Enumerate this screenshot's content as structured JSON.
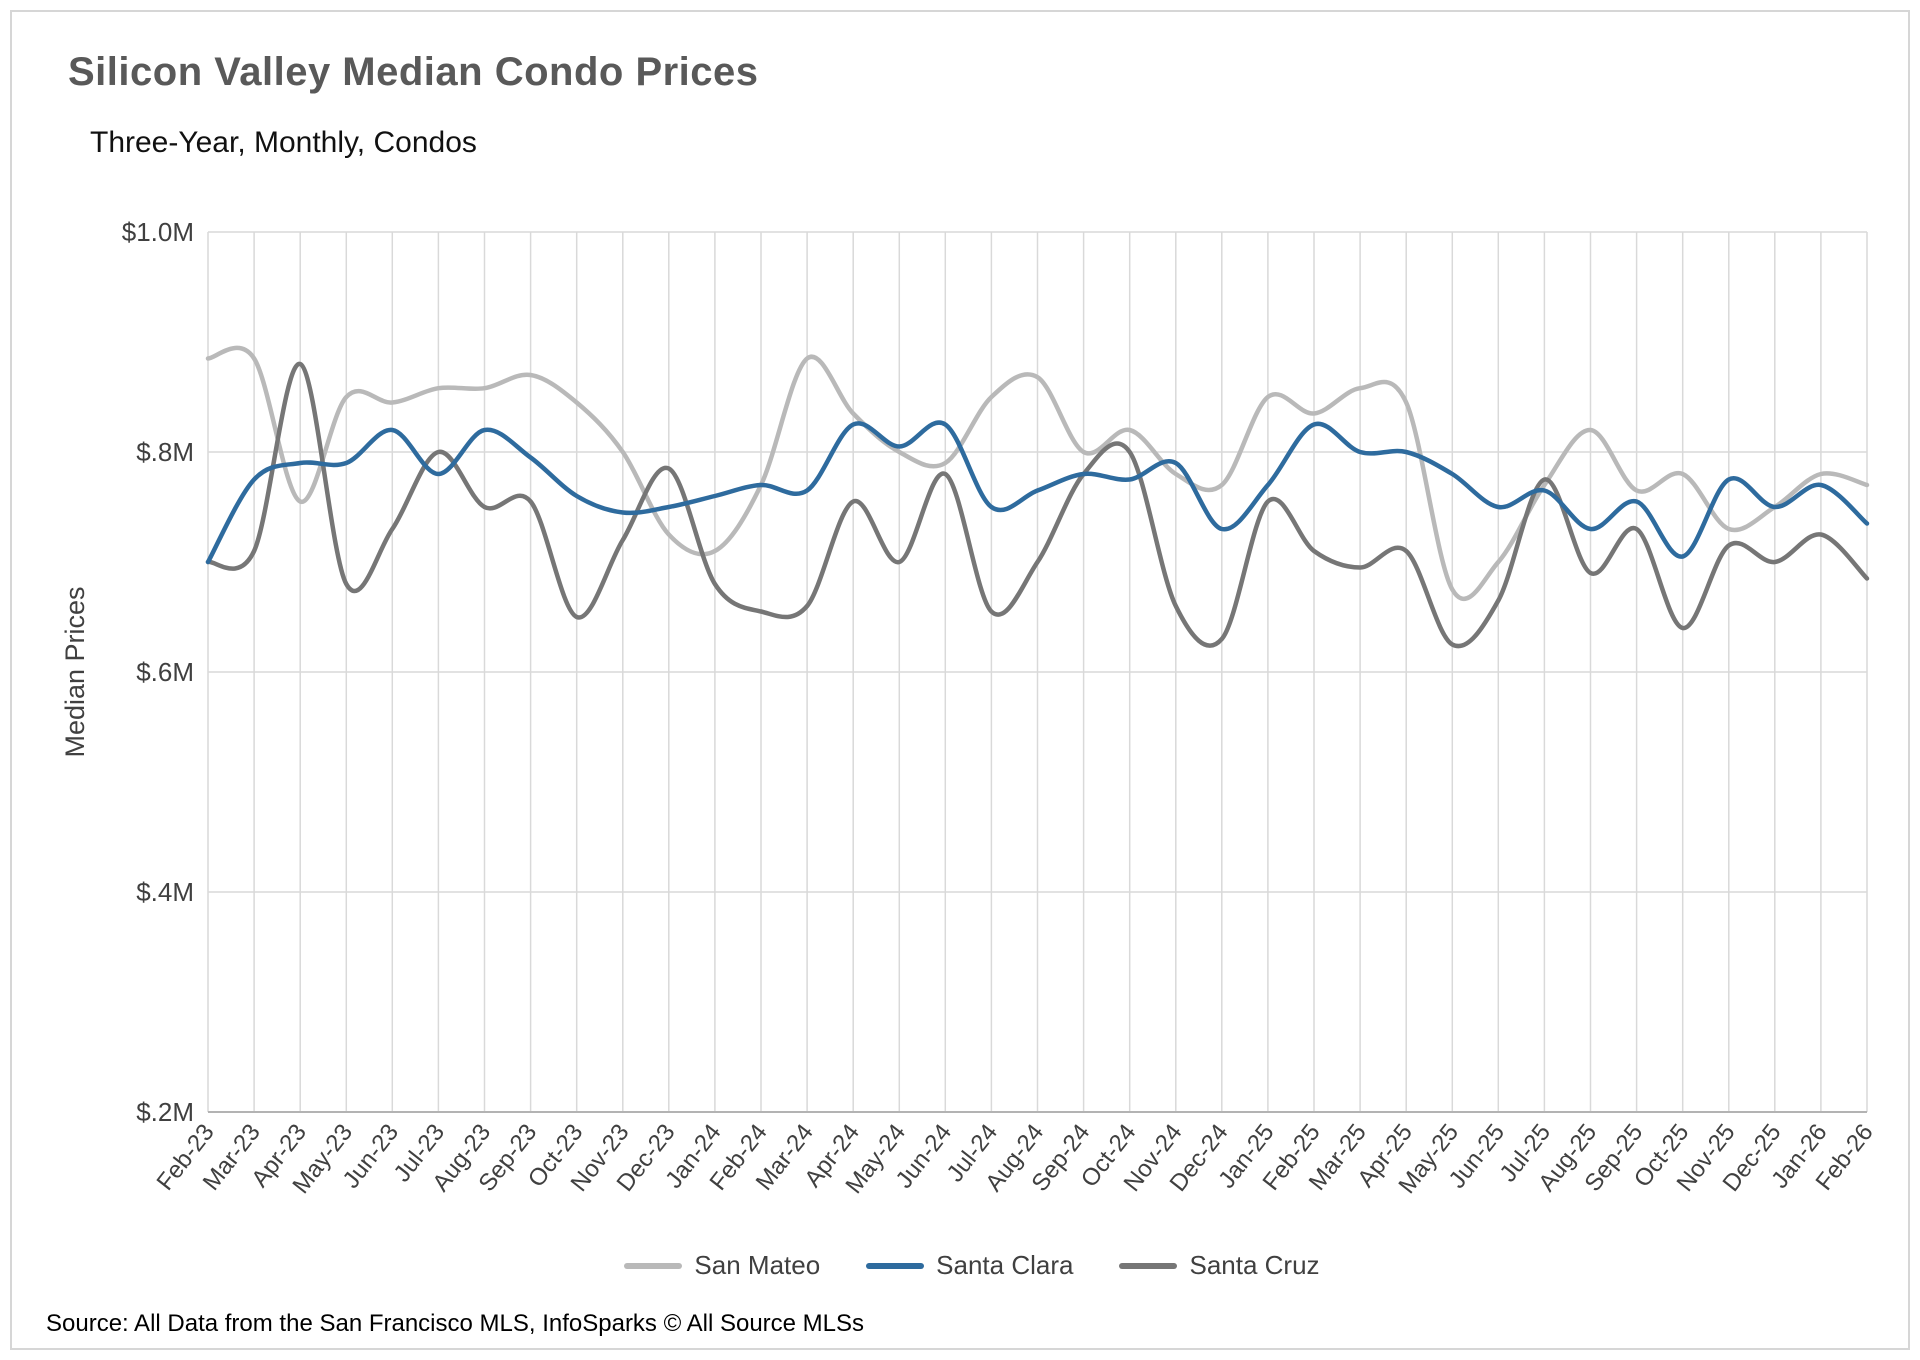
{
  "header": {
    "title": "Silicon Valley Median Condo Prices",
    "subtitle": "Three-Year, Monthly, Condos"
  },
  "footer": {
    "source": "Source: All Data from the San Francisco MLS, InfoSparks © All Source MLSs"
  },
  "colors": {
    "grid": "#d9d9d9",
    "axis_text": "#404040",
    "title_text": "#595959",
    "frame_border": "#d6d6d6"
  },
  "chart_data": {
    "type": "line",
    "title": "Silicon Valley Median Condo Prices",
    "subtitle": "Three-Year, Monthly, Condos",
    "xlabel": "",
    "ylabel": "Median Prices",
    "unit": "$M",
    "ylim": [
      0.2,
      1.0
    ],
    "grid": true,
    "legend_position": "bottom",
    "categories": [
      "Feb-23",
      "Mar-23",
      "Apr-23",
      "May-23",
      "Jun-23",
      "Jul-23",
      "Aug-23",
      "Sep-23",
      "Oct-23",
      "Nov-23",
      "Dec-23",
      "Jan-24",
      "Feb-24",
      "Mar-24",
      "Apr-24",
      "May-24",
      "Jun-24",
      "Jul-24",
      "Aug-24",
      "Sep-24",
      "Oct-24",
      "Nov-24",
      "Dec-24",
      "Jan-25",
      "Feb-25",
      "Mar-25",
      "Apr-25",
      "May-25",
      "Jun-25",
      "Jul-25",
      "Aug-25",
      "Sep-25",
      "Oct-25",
      "Nov-25",
      "Dec-25",
      "Jan-26",
      "Feb-26"
    ],
    "yticks": [
      {
        "value": 0.2,
        "label": "$.2M"
      },
      {
        "value": 0.4,
        "label": "$.4M"
      },
      {
        "value": 0.6,
        "label": "$.6M"
      },
      {
        "value": 0.8,
        "label": "$.8M"
      },
      {
        "value": 1.0,
        "label": "$1.0M"
      }
    ],
    "series": [
      {
        "name": "San Mateo",
        "color": "#b9b9b9",
        "values": [
          0.885,
          0.885,
          0.755,
          0.85,
          0.845,
          0.858,
          0.858,
          0.87,
          0.845,
          0.8,
          0.725,
          0.71,
          0.77,
          0.885,
          0.835,
          0.8,
          0.79,
          0.85,
          0.868,
          0.8,
          0.82,
          0.78,
          0.77,
          0.85,
          0.835,
          0.858,
          0.845,
          0.675,
          0.7,
          0.77,
          0.82,
          0.765,
          0.78,
          0.73,
          0.75,
          0.78,
          0.77
        ]
      },
      {
        "name": "Santa Clara",
        "color": "#2e6b9e",
        "values": [
          0.7,
          0.775,
          0.79,
          0.79,
          0.82,
          0.78,
          0.82,
          0.795,
          0.76,
          0.745,
          0.75,
          0.76,
          0.77,
          0.765,
          0.825,
          0.805,
          0.825,
          0.75,
          0.765,
          0.78,
          0.775,
          0.79,
          0.73,
          0.77,
          0.825,
          0.8,
          0.8,
          0.78,
          0.75,
          0.765,
          0.73,
          0.755,
          0.705,
          0.775,
          0.75,
          0.77,
          0.735
        ]
      },
      {
        "name": "Santa Cruz",
        "color": "#767676",
        "values": [
          0.7,
          0.71,
          0.88,
          0.68,
          0.73,
          0.8,
          0.75,
          0.755,
          0.65,
          0.72,
          0.785,
          0.68,
          0.655,
          0.66,
          0.755,
          0.7,
          0.78,
          0.655,
          0.7,
          0.78,
          0.8,
          0.66,
          0.63,
          0.755,
          0.71,
          0.695,
          0.71,
          0.625,
          0.665,
          0.775,
          0.69,
          0.73,
          0.64,
          0.715,
          0.7,
          0.725,
          0.685
        ]
      }
    ]
  }
}
